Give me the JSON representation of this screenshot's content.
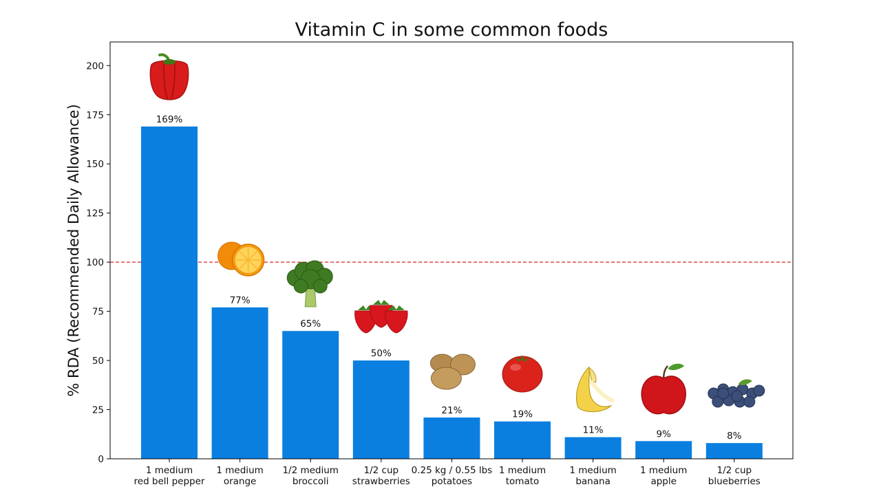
{
  "chart_data": {
    "type": "bar",
    "title": "Vitamin C in some common foods",
    "xlabel": "",
    "ylabel": "% RDA (Recommended Daily Allowance)",
    "ylim": [
      0,
      212
    ],
    "yticks": [
      0,
      25,
      50,
      75,
      100,
      125,
      150,
      175,
      200
    ],
    "reference_line": {
      "y": 100,
      "style": "dashed",
      "color": "#d62728"
    },
    "grid": false,
    "bar_color": "#0a7fe0",
    "categories": [
      {
        "line1": "1 medium",
        "line2": "red bell pepper",
        "icon": "red-bell-pepper-icon"
      },
      {
        "line1": "1 medium",
        "line2": "orange",
        "icon": "orange-icon"
      },
      {
        "line1": "1/2 medium",
        "line2": "broccoli",
        "icon": "broccoli-icon"
      },
      {
        "line1": "1/2 cup",
        "line2": "strawberries",
        "icon": "strawberries-icon"
      },
      {
        "line1": "0.25 kg / 0.55 lbs",
        "line2": "potatoes",
        "icon": "potatoes-icon"
      },
      {
        "line1": "1 medium",
        "line2": "tomato",
        "icon": "tomato-icon"
      },
      {
        "line1": "1 medium",
        "line2": "banana",
        "icon": "banana-icon"
      },
      {
        "line1": "1 medium",
        "line2": "apple",
        "icon": "apple-icon"
      },
      {
        "line1": "1/2 cup",
        "line2": "blueberries",
        "icon": "blueberries-icon"
      }
    ],
    "values": [
      169,
      77,
      65,
      50,
      21,
      19,
      11,
      9,
      8
    ],
    "data_labels": [
      "169%",
      "77%",
      "65%",
      "50%",
      "21%",
      "19%",
      "11%",
      "9%",
      "8%"
    ]
  }
}
